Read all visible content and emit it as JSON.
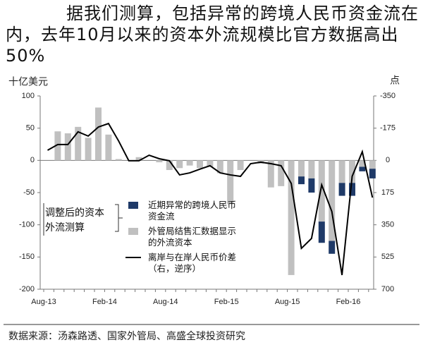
{
  "chart_data": {
    "type": "bar",
    "title": "据我们测算，包括异常的跨境人民币资金流在内，去年10月以来的资本外流规模比官方数据高出50%",
    "y_label": "十亿美元",
    "y2_label": "点",
    "annotation": "调整后的资本外流测算",
    "source": "数据来源：汤森路透、国家外管局、高盛全球投资研究",
    "categories": [
      "Aug-13",
      null,
      null,
      null,
      null,
      null,
      "Feb-14",
      null,
      null,
      null,
      null,
      null,
      "Aug-14",
      null,
      null,
      null,
      null,
      null,
      "Feb-15",
      null,
      null,
      null,
      null,
      null,
      "Aug-15",
      null,
      null,
      null,
      null,
      null,
      "Feb-16",
      null,
      null
    ],
    "ylim": [
      -200,
      100
    ],
    "yticks": [
      -200,
      -150,
      -100,
      -50,
      0,
      50,
      100
    ],
    "y2lim": [
      700,
      -350
    ],
    "y2ticks": [
      -350,
      -175,
      0,
      175,
      350,
      525,
      700
    ],
    "series": [
      {
        "name": "外管局结售汇数据显示的外流资本",
        "type": "bar",
        "color": "#c0c0c0",
        "values": [
          0,
          45,
          42,
          52,
          35,
          82,
          40,
          2,
          0,
          5,
          0,
          -3,
          -15,
          -12,
          -8,
          -12,
          -10,
          -20,
          -68,
          -15,
          0,
          -5,
          -42,
          -40,
          -178,
          -25,
          -28,
          -95,
          -125,
          -35,
          -35,
          -10,
          -13
        ]
      },
      {
        "name": "近期异常的跨境人民币资金流",
        "type": "bar",
        "color": "#1f3a68",
        "values": [
          null,
          null,
          null,
          null,
          null,
          null,
          null,
          null,
          null,
          null,
          null,
          null,
          null,
          null,
          null,
          null,
          null,
          null,
          null,
          null,
          null,
          null,
          null,
          null,
          null,
          -12,
          -22,
          -33,
          -20,
          -20,
          -20,
          -7,
          -15
        ]
      },
      {
        "name": "离岸与在岸人民币价差（右，逆序）",
        "type": "line",
        "axis": "y2",
        "color": "#000000",
        "values": [
          -55,
          -86,
          -86,
          -155,
          -132,
          -181,
          -200,
          -105,
          2,
          2,
          -28,
          -9,
          2,
          79,
          68,
          48,
          29,
          68,
          79,
          87,
          18,
          10,
          18,
          29,
          125,
          478,
          424,
          133,
          278,
          623,
          87,
          -47,
          202
        ]
      }
    ]
  }
}
